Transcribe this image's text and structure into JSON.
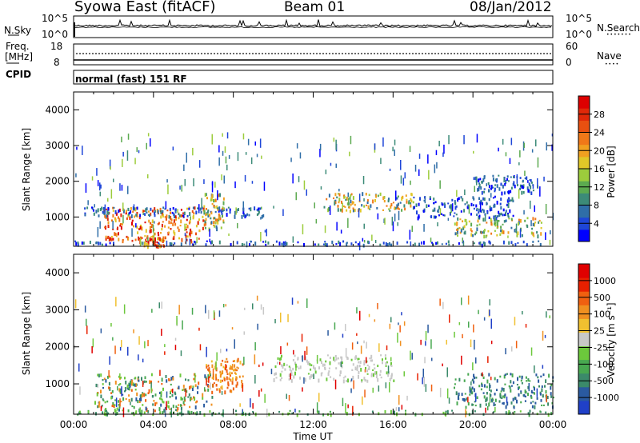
{
  "header": {
    "title": "Syowa East (fitACF)",
    "beam": "Beam 01",
    "date": "08/Jan/2012"
  },
  "top_panel": {
    "left_label": "N.Sky",
    "left_ticks": [
      "10^5",
      "10^0"
    ],
    "right_label": "N.Search",
    "right_ticks": [
      "10^5",
      "10^0"
    ],
    "legend_mark": "•••••••"
  },
  "freq_panel": {
    "left_label_1": "Freq.",
    "left_label_2": "[MHz]",
    "left_ticks": [
      "18",
      "8"
    ],
    "right_label": "Nave",
    "right_ticks": [
      "60",
      "0"
    ],
    "legend_mark": "••••",
    "cpid_label": "CPID",
    "cpid_value": "normal (fast) 151 RF"
  },
  "colors": {
    "frame": "#000000",
    "background": "#ffffff"
  },
  "chart_data": [
    {
      "type": "heatmap",
      "title": "",
      "xlabel": "Time UT",
      "ylabel": "Slant Range [km]",
      "x_ticks": [
        "00:00",
        "04:00",
        "08:00",
        "12:00",
        "16:00",
        "20:00",
        "00:00"
      ],
      "y_ticks": [
        "1000",
        "2000",
        "3000",
        "4000"
      ],
      "xlim": [
        0,
        24
      ],
      "ylim": [
        180,
        4500
      ],
      "colorbar": {
        "label": "Power [dB]",
        "ticks": [
          "4",
          "8",
          "12",
          "16",
          "20",
          "24",
          "28"
        ],
        "colors": [
          "#0000ff",
          "#1e46d8",
          "#2f6ea8",
          "#3c8b78",
          "#5caa50",
          "#9ccc3c",
          "#e0c828",
          "#f0a020",
          "#f07818",
          "#e85010",
          "#e02808",
          "#dd0000"
        ]
      },
      "features": [
        {
          "x": [
            0,
            24
          ],
          "y": [
            250,
            350
          ],
          "level": "low"
        },
        {
          "x": [
            1.5,
            6.5
          ],
          "y": [
            300,
            1300
          ],
          "level": "high"
        },
        {
          "x": [
            3.5,
            4.5
          ],
          "y": [
            200,
            500
          ],
          "level": "high"
        },
        {
          "x": [
            0.5,
            9.5
          ],
          "y": [
            1050,
            1300
          ],
          "level": "low"
        },
        {
          "x": [
            6.5,
            7.5
          ],
          "y": [
            700,
            1700
          ],
          "level": "mid"
        },
        {
          "x": [
            12.5,
            17
          ],
          "y": [
            1200,
            1700
          ],
          "level": "mid"
        },
        {
          "x": [
            17,
            22
          ],
          "y": [
            1000,
            1600
          ],
          "level": "low"
        },
        {
          "x": [
            19,
            23.5
          ],
          "y": [
            500,
            1000
          ],
          "level": "mid"
        },
        {
          "x": [
            20,
            23
          ],
          "y": [
            1700,
            2200
          ],
          "level": "low"
        }
      ]
    },
    {
      "type": "heatmap",
      "title": "",
      "xlabel": "Time UT",
      "ylabel": "Slant Range [km]",
      "x_ticks": [
        "00:00",
        "04:00",
        "08:00",
        "12:00",
        "16:00",
        "20:00",
        "00:00"
      ],
      "y_ticks": [
        "1000",
        "2000",
        "3000",
        "4000"
      ],
      "xlim": [
        0,
        24
      ],
      "ylim": [
        180,
        4500
      ],
      "colorbar": {
        "label": "Velocity [m s⁻¹]",
        "ticks": [
          "1000",
          "500",
          "100",
          "25",
          "-25",
          "-100",
          "-500",
          "-1000"
        ],
        "colors": [
          "#2040c8",
          "#2a5aa0",
          "#3b8a6a",
          "#48a850",
          "#6cc83c",
          "#c8c8c8",
          "#f0c030",
          "#f09020",
          "#f06010",
          "#e82000",
          "#e00000"
        ]
      },
      "features": [
        {
          "x": [
            0,
            24
          ],
          "y": [
            200,
            300
          ],
          "level": "green"
        },
        {
          "x": [
            1,
            7
          ],
          "y": [
            300,
            1300
          ],
          "level": "green-orange"
        },
        {
          "x": [
            6.5,
            8.5
          ],
          "y": [
            800,
            1700
          ],
          "level": "orange"
        },
        {
          "x": [
            10,
            16
          ],
          "y": [
            1100,
            1800
          ],
          "level": "grey"
        },
        {
          "x": [
            19,
            24
          ],
          "y": [
            400,
            1300
          ],
          "level": "blue-green"
        }
      ]
    }
  ]
}
